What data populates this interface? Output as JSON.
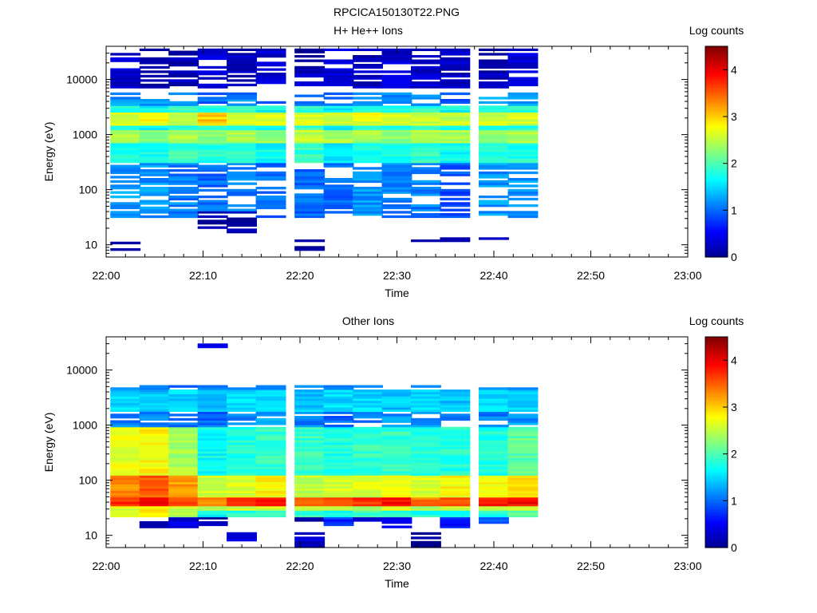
{
  "page_title": "RPCICA150130T22.PNG",
  "colorscale": [
    {
      "t": 0.0,
      "c": "#00008f"
    },
    {
      "t": 0.12,
      "c": "#0000ff"
    },
    {
      "t": 0.37,
      "c": "#00ffff"
    },
    {
      "t": 0.62,
      "c": "#ffff00"
    },
    {
      "t": 0.87,
      "c": "#ff0000"
    },
    {
      "t": 1.0,
      "c": "#800000"
    }
  ],
  "chart_data": [
    {
      "type": "heatmap",
      "title": "H+ He++ Ions",
      "xlabel": "Time",
      "ylabel": "Energy (eV)",
      "y_scale": "log",
      "xlim": [
        "22:00",
        "23:00"
      ],
      "ylim": [
        6,
        40000
      ],
      "x_ticks": [
        "22:00",
        "22:10",
        "22:20",
        "22:30",
        "22:40",
        "22:50",
        "23:00"
      ],
      "y_ticks": [
        {
          "v": 10,
          "label": "10"
        },
        {
          "v": 100,
          "label": "100"
        },
        {
          "v": 1000,
          "label": "1000"
        },
        {
          "v": 10000,
          "label": "10000"
        }
      ],
      "colorbar": {
        "label": "Log counts",
        "range": [
          0,
          4.5
        ],
        "ticks": [
          0,
          1,
          2,
          3,
          4
        ]
      },
      "time_bins": [
        "22:02",
        "22:05",
        "22:08",
        "22:11",
        "22:14",
        "22:17",
        "22:21",
        "22:24",
        "22:27",
        "22:30",
        "22:33",
        "22:36",
        "22:40",
        "22:43"
      ],
      "layers": [
        {
          "e0": 30,
          "e1": 6000,
          "v": [
            1.2,
            1.2,
            1.1,
            1.0,
            1.1,
            1.0,
            1.0,
            1.0,
            1.2,
            1.1,
            1.1,
            0.9,
            1.2,
            1.2
          ]
        },
        {
          "e0": 300,
          "e1": 3500,
          "v": [
            1.8,
            1.7,
            1.9,
            1.8,
            1.9,
            1.7,
            1.9,
            1.6,
            1.8,
            1.8,
            1.9,
            1.7,
            1.8,
            1.8
          ]
        },
        {
          "e0": 1500,
          "e1": 2500,
          "v": [
            2.6,
            2.8,
            2.6,
            3.0,
            2.6,
            2.7,
            2.6,
            2.5,
            2.7,
            2.6,
            2.6,
            2.5,
            2.6,
            2.6
          ]
        },
        {
          "e0": 700,
          "e1": 1200,
          "v": [
            2.4,
            2.2,
            2.4,
            2.3,
            2.4,
            2.3,
            2.5,
            2.4,
            2.4,
            2.3,
            2.5,
            2.4,
            2.3,
            2.4
          ]
        },
        {
          "e0": 8,
          "e1": 12,
          "v": [
            0.1,
            null,
            null,
            null,
            null,
            null,
            0.1,
            null,
            null,
            null,
            null,
            null,
            null,
            null
          ]
        },
        {
          "e0": 17,
          "e1": 40,
          "v": [
            null,
            null,
            null,
            0.1,
            0.1,
            null,
            null,
            null,
            null,
            null,
            null,
            null,
            null,
            null
          ]
        },
        {
          "e0": 11,
          "e1": 14,
          "v": [
            null,
            null,
            null,
            null,
            null,
            null,
            null,
            null,
            null,
            null,
            0.1,
            0.3,
            0.2,
            null
          ]
        },
        {
          "e0": 7000,
          "e1": 38000,
          "v": [
            0.3,
            0.2,
            0.2,
            0.3,
            0.2,
            0.3,
            0.2,
            0.3,
            0.2,
            0.3,
            0.3,
            0.2,
            0.2,
            0.3
          ]
        }
      ]
    },
    {
      "type": "heatmap",
      "title": "Other Ions",
      "xlabel": "Time",
      "ylabel": "Energy (eV)",
      "y_scale": "log",
      "xlim": [
        "22:00",
        "23:00"
      ],
      "ylim": [
        6,
        40000
      ],
      "x_ticks": [
        "22:00",
        "22:10",
        "22:20",
        "22:30",
        "22:40",
        "22:50",
        "23:00"
      ],
      "y_ticks": [
        {
          "v": 10,
          "label": "10"
        },
        {
          "v": 100,
          "label": "100"
        },
        {
          "v": 1000,
          "label": "1000"
        },
        {
          "v": 10000,
          "label": "10000"
        }
      ],
      "colorbar": {
        "label": "Log counts",
        "range": [
          0,
          4.5
        ],
        "ticks": [
          0,
          1,
          2,
          3,
          4
        ]
      },
      "time_bins": [
        "22:02",
        "22:05",
        "22:08",
        "22:11",
        "22:14",
        "22:17",
        "22:21",
        "22:24",
        "22:27",
        "22:30",
        "22:33",
        "22:36",
        "22:40",
        "22:43"
      ],
      "layers": [
        {
          "e0": 22,
          "e1": 5500,
          "v": [
            1.1,
            1.1,
            1.0,
            1.0,
            1.1,
            1.2,
            1.1,
            1.0,
            1.1,
            1.2,
            1.2,
            1.1,
            1.1,
            1.2
          ]
        },
        {
          "e0": 1800,
          "e1": 4500,
          "v": [
            1.5,
            1.4,
            1.5,
            1.4,
            1.5,
            1.5,
            1.4,
            1.5,
            1.5,
            1.4,
            1.5,
            1.4,
            1.5,
            1.5
          ]
        },
        {
          "e0": 22,
          "e1": 900,
          "v": [
            2.7,
            2.8,
            2.4,
            1.7,
            1.8,
            1.9,
            1.9,
            1.8,
            1.9,
            1.9,
            1.8,
            1.8,
            1.8,
            2.1
          ]
        },
        {
          "e0": 30,
          "e1": 120,
          "v": [
            3.3,
            3.5,
            3.2,
            2.6,
            2.6,
            2.8,
            2.5,
            2.6,
            2.6,
            2.7,
            2.6,
            2.8,
            2.8,
            3.0
          ]
        },
        {
          "e0": 33,
          "e1": 50,
          "v": [
            3.7,
            3.9,
            3.6,
            3.3,
            3.6,
            3.8,
            3.4,
            3.7,
            3.7,
            3.9,
            3.4,
            3.6,
            3.8,
            3.9
          ]
        },
        {
          "e0": 28,
          "e1": 33,
          "v": [
            2.6,
            2.8,
            2.6,
            2.3,
            2.5,
            2.6,
            2.4,
            2.5,
            2.5,
            2.6,
            2.4,
            2.5,
            2.6,
            2.6
          ]
        },
        {
          "e0": 14,
          "e1": 22,
          "v": [
            null,
            0.1,
            0.4,
            0.1,
            null,
            null,
            0.2,
            0.7,
            0.3,
            0.4,
            null,
            0.6,
            0.9,
            null
          ]
        },
        {
          "e0": 6,
          "e1": 11,
          "v": [
            null,
            null,
            null,
            null,
            0.4,
            null,
            0.3,
            null,
            null,
            null,
            0.1,
            null,
            null,
            null
          ]
        },
        {
          "e0": 26000,
          "e1": 30000,
          "v": [
            null,
            null,
            null,
            0.4,
            null,
            null,
            null,
            null,
            null,
            null,
            null,
            null,
            null,
            null
          ]
        }
      ]
    }
  ]
}
